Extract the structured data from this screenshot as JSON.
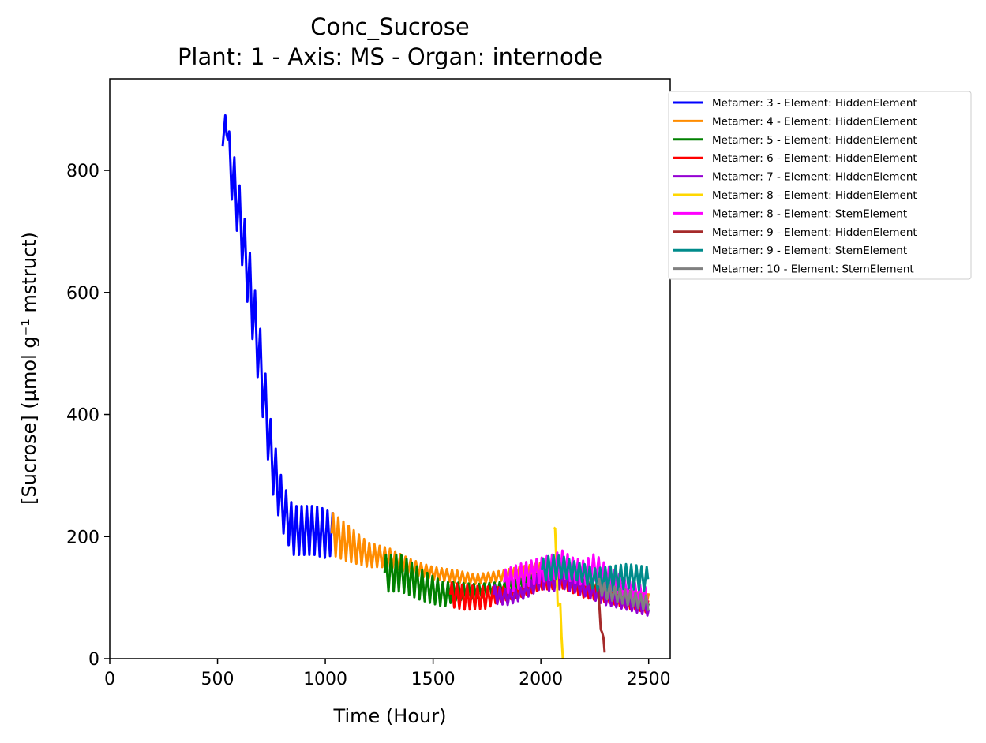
{
  "chart_data": {
    "type": "line",
    "title": "Conc_Sucrose",
    "subtitle": "Plant: 1 - Axis: MS - Organ: internode",
    "xlabel": "Time (Hour)",
    "ylabel": "[Sucrose] (µmol g⁻¹ mstruct)",
    "xlim": [
      0,
      2600
    ],
    "ylim": [
      0,
      950
    ],
    "xticks": [
      0,
      500,
      1000,
      1500,
      2000,
      2500
    ],
    "yticks": [
      0,
      200,
      400,
      600,
      800
    ],
    "grid": false,
    "legend_position": "outside upper right",
    "oscillation_period_hours": 24,
    "series": [
      {
        "name": "Metamer: 3 - Element: HiddenElement",
        "color": "#0000ff",
        "x": [
          524,
          536,
          560,
          600,
          650,
          700,
          750,
          800,
          850,
          900,
          950,
          1000,
          1035
        ],
        "y": [
          840,
          890,
          810,
          730,
          610,
          480,
          330,
          250,
          210,
          210,
          210,
          205,
          205
        ],
        "amplitude": [
          0,
          0,
          45,
          50,
          55,
          55,
          50,
          40,
          40,
          40,
          40,
          40,
          35
        ]
      },
      {
        "name": "Metamer: 4 - Element: HiddenElement",
        "color": "#ff8c00",
        "x": [
          1030,
          1100,
          1200,
          1300,
          1400,
          1500,
          1600,
          1700,
          1800,
          1900,
          2000,
          2100,
          2200,
          2300,
          2400,
          2500
        ],
        "y": [
          205,
          190,
          170,
          165,
          150,
          140,
          135,
          130,
          135,
          140,
          145,
          140,
          120,
          110,
          100,
          95
        ],
        "amplitude": [
          35,
          30,
          20,
          15,
          12,
          10,
          10,
          8,
          8,
          10,
          12,
          15,
          15,
          12,
          12,
          12
        ]
      },
      {
        "name": "Metamer: 5 - Element: HiddenElement",
        "color": "#008000",
        "x": [
          1275,
          1350,
          1450,
          1550,
          1600,
          1700,
          1800,
          1900,
          2000,
          2100,
          2200,
          2300,
          2400,
          2500
        ],
        "y": [
          140,
          140,
          120,
          105,
          110,
          110,
          115,
          120,
          130,
          135,
          120,
          110,
          100,
          90
        ],
        "amplitude": [
          30,
          30,
          25,
          20,
          15,
          12,
          10,
          10,
          12,
          15,
          15,
          12,
          12,
          10
        ]
      },
      {
        "name": "Metamer: 6 - Element: HiddenElement",
        "color": "#ff0000",
        "x": [
          1580,
          1650,
          1750,
          1800,
          1900,
          2000,
          2100,
          2200,
          2300,
          2400,
          2500
        ],
        "y": [
          105,
          100,
          100,
          105,
          110,
          125,
          130,
          115,
          105,
          95,
          85
        ],
        "amplitude": [
          20,
          20,
          18,
          12,
          10,
          12,
          15,
          15,
          12,
          12,
          10
        ]
      },
      {
        "name": "Metamer: 7 - Element: HiddenElement",
        "color": "#9400d3",
        "x": [
          1780,
          1850,
          1900,
          1950,
          2000,
          2050,
          2100,
          2200,
          2300,
          2400,
          2500
        ],
        "y": [
          105,
          100,
          105,
          115,
          130,
          125,
          130,
          115,
          100,
          90,
          80
        ],
        "amplitude": [
          15,
          12,
          10,
          12,
          15,
          15,
          15,
          12,
          12,
          10,
          10
        ]
      },
      {
        "name": "Metamer: 8 - Element: HiddenElement",
        "color": "#ffd700",
        "x": [
          2060,
          2070,
          2080,
          2090,
          2100,
          2105
        ],
        "y": [
          215,
          170,
          110,
          60,
          20,
          0
        ],
        "amplitude": [
          10,
          35,
          35,
          30,
          20,
          0
        ]
      },
      {
        "name": "Metamer: 8 - Element: StemElement",
        "color": "#ff00ff",
        "x": [
          1830,
          1900,
          2000,
          2050,
          2100,
          2150,
          2200,
          2250,
          2300,
          2400,
          2500
        ],
        "y": [
          125,
          135,
          145,
          150,
          155,
          145,
          140,
          150,
          135,
          115,
          100
        ],
        "amplitude": [
          20,
          20,
          20,
          20,
          22,
          20,
          20,
          22,
          20,
          15,
          15
        ]
      },
      {
        "name": "Metamer: 9 - Element: HiddenElement",
        "color": "#a52a2a",
        "x": [
          2260,
          2270,
          2280,
          2290,
          2300
        ],
        "y": [
          120,
          90,
          55,
          25,
          0
        ],
        "amplitude": [
          10,
          12,
          15,
          10,
          0
        ]
      },
      {
        "name": "Metamer: 9 - Element: StemElement",
        "color": "#008b8b",
        "x": [
          2005,
          2050,
          2100,
          2150,
          2200,
          2250,
          2300,
          2400,
          2500
        ],
        "y": [
          145,
          150,
          150,
          145,
          140,
          130,
          130,
          135,
          130
        ],
        "amplitude": [
          18,
          20,
          18,
          15,
          15,
          18,
          20,
          20,
          20
        ]
      },
      {
        "name": "Metamer: 10 - Element: StemElement",
        "color": "#808080",
        "x": [
          2265,
          2300,
          2400,
          2500
        ],
        "y": [
          120,
          110,
          100,
          90
        ],
        "amplitude": [
          12,
          12,
          12,
          12
        ]
      }
    ]
  }
}
